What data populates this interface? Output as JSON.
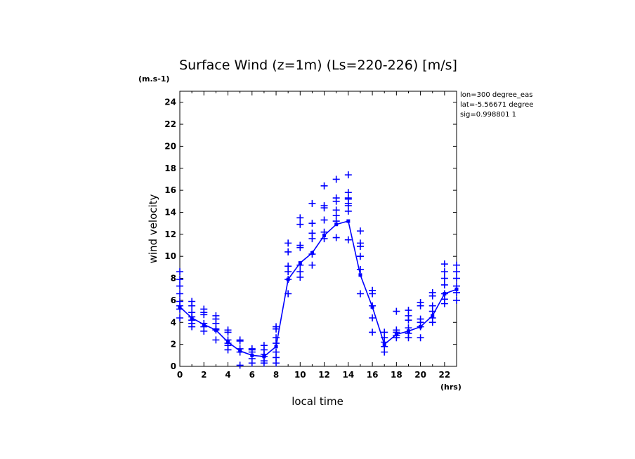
{
  "chart_data": {
    "type": "scatter",
    "title": "Surface Wind (z=1m) (Ls=220-226) [m/s]",
    "y_unit": "(m.s-1)",
    "x_unit": "(hrs)",
    "xlabel": "local time",
    "ylabel": "wind velocity",
    "xlim": [
      0,
      23
    ],
    "ylim": [
      0,
      25
    ],
    "x_ticks": [
      0,
      2,
      4,
      6,
      8,
      10,
      12,
      14,
      16,
      18,
      20,
      22
    ],
    "y_ticks": [
      0,
      2,
      4,
      6,
      8,
      10,
      12,
      14,
      16,
      18,
      20,
      22,
      24
    ],
    "info_lines": [
      "lon=300 degree_eas",
      "lat=-5.56671 degree",
      "sig=0.998801 1"
    ],
    "color": "#0000ff",
    "grid": false,
    "series": [
      {
        "kind": "points",
        "x": [
          0,
          0,
          0,
          0,
          0,
          0,
          0,
          0,
          1,
          1,
          1,
          1,
          1,
          1,
          1,
          2,
          2,
          2,
          2,
          2,
          2,
          3,
          3,
          3,
          3,
          3,
          3,
          4,
          4,
          4,
          4,
          4,
          4,
          5,
          5,
          5,
          5,
          5,
          6,
          6,
          6,
          6,
          6,
          7,
          7,
          7,
          7,
          7,
          7,
          8,
          8,
          8,
          8,
          8,
          8,
          8,
          9,
          9,
          9,
          9,
          9,
          9,
          10,
          10,
          10,
          10,
          10,
          10,
          10,
          11,
          11,
          11,
          11,
          11,
          11,
          12,
          12,
          12,
          12,
          12,
          12,
          13,
          13,
          13,
          13,
          13,
          13,
          13,
          14,
          14,
          14,
          14,
          14,
          14,
          14,
          14,
          15,
          15,
          15,
          15,
          15,
          15,
          16,
          16,
          16,
          16,
          16,
          17,
          17,
          17,
          17,
          17,
          18,
          18,
          18,
          18,
          18,
          19,
          19,
          19,
          19,
          19,
          19,
          20,
          20,
          20,
          20,
          20,
          20,
          21,
          21,
          21,
          21,
          21,
          21,
          22,
          22,
          22,
          22,
          22,
          22,
          22,
          23,
          23,
          23,
          23,
          23,
          23
        ],
        "y": [
          8.6,
          7.9,
          7.3,
          6.6,
          5.9,
          5.5,
          5.2,
          4.4,
          5.9,
          5.5,
          4.9,
          4.5,
          4.2,
          3.9,
          3.6,
          5.2,
          4.9,
          4.7,
          3.9,
          3.6,
          3.2,
          4.6,
          4.3,
          3.9,
          3.4,
          3.3,
          2.4,
          3.3,
          3.1,
          2.4,
          2.1,
          1.9,
          1.5,
          2.4,
          2.3,
          1.6,
          1.3,
          0.1,
          1.6,
          1.5,
          1.3,
          0.7,
          0.3,
          1.9,
          1.5,
          1.1,
          0.9,
          0.5,
          0.3,
          3.6,
          3.4,
          2.6,
          2.1,
          1.3,
          0.8,
          0.3,
          11.2,
          10.4,
          9.1,
          8.6,
          7.9,
          6.6,
          13.5,
          12.9,
          11.0,
          10.8,
          9.2,
          8.6,
          8.1,
          14.8,
          13.0,
          12.1,
          11.6,
          10.2,
          9.2,
          16.4,
          14.6,
          14.4,
          13.3,
          12.2,
          11.6,
          17.0,
          15.3,
          15.0,
          14.2,
          13.7,
          13.2,
          11.7,
          17.4,
          15.8,
          15.3,
          15.2,
          14.8,
          14.6,
          14.1,
          11.5,
          12.3,
          11.2,
          10.9,
          10.0,
          8.8,
          6.6,
          6.9,
          6.6,
          5.5,
          4.4,
          3.1,
          3.1,
          2.6,
          2.2,
          1.8,
          1.3,
          5.0,
          3.3,
          3.1,
          2.8,
          2.6,
          5.1,
          4.6,
          4.2,
          3.5,
          3.0,
          2.6,
          5.8,
          5.5,
          4.3,
          4.0,
          3.6,
          2.6,
          6.7,
          6.4,
          5.5,
          5.0,
          4.4,
          4.0,
          9.3,
          8.6,
          8.0,
          7.4,
          6.6,
          6.1,
          5.7,
          9.2,
          8.6,
          8.0,
          7.3,
          6.7,
          6.0
        ]
      },
      {
        "kind": "line",
        "x": [
          0,
          1,
          2,
          3,
          4,
          5,
          6,
          7,
          8,
          9,
          10,
          11,
          12,
          13,
          14,
          15,
          16,
          17,
          18,
          19,
          20,
          21,
          22,
          23
        ],
        "y": [
          5.4,
          4.4,
          3.8,
          3.3,
          2.2,
          1.4,
          1.0,
          0.9,
          1.8,
          7.9,
          9.4,
          10.3,
          11.9,
          12.9,
          13.2,
          8.3,
          5.4,
          2.0,
          2.9,
          3.2,
          3.6,
          4.6,
          6.6,
          7.0
        ]
      }
    ]
  }
}
